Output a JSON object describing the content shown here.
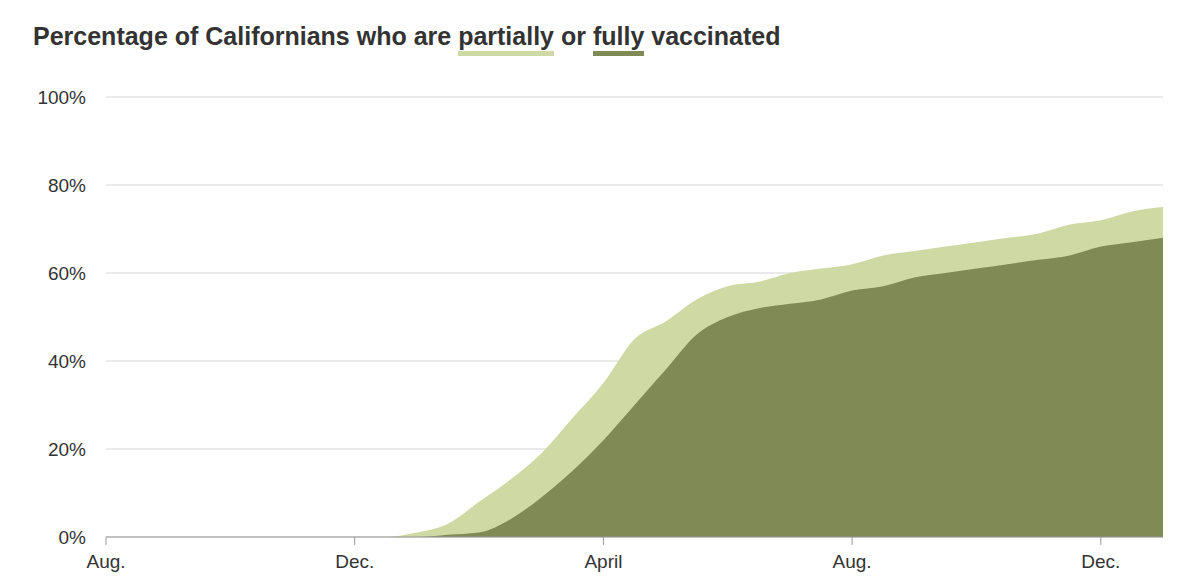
{
  "chart_data": {
    "type": "area",
    "title": "Percentage of Californians who are partially or fully vaccinated",
    "categories": [
      "Aug.",
      null,
      null,
      null,
      null,
      null,
      null,
      null,
      "Dec.",
      null,
      null,
      null,
      null,
      null,
      null,
      null,
      "April",
      null,
      null,
      null,
      null,
      null,
      null,
      null,
      "Aug.",
      null,
      null,
      null,
      null,
      null,
      null,
      null,
      "Dec.",
      null,
      null
    ],
    "series": [
      {
        "name": "partially",
        "color": "#cfd9a3",
        "values": [
          0,
          0,
          0,
          0,
          0,
          0,
          0,
          0,
          0,
          0,
          1,
          3,
          8,
          13,
          19,
          27,
          35,
          45,
          49,
          54,
          57,
          58,
          60,
          61,
          62,
          64,
          65,
          66,
          67,
          68,
          69,
          71,
          72,
          74,
          75
        ]
      },
      {
        "name": "fully",
        "color": "#7f8a55",
        "values": [
          0,
          0,
          0,
          0,
          0,
          0,
          0,
          0,
          0,
          0,
          0,
          0.5,
          1,
          4,
          9,
          15,
          22,
          30,
          38,
          46,
          50,
          52,
          53,
          54,
          56,
          57,
          59,
          60,
          61,
          62,
          63,
          64,
          66,
          67,
          68
        ]
      }
    ],
    "ylim": [
      0,
      100
    ],
    "yticks": [
      {
        "value": 0,
        "label": "0%"
      },
      {
        "value": 20,
        "label": "20%"
      },
      {
        "value": 40,
        "label": "40%"
      },
      {
        "value": 60,
        "label": "60%"
      },
      {
        "value": 80,
        "label": "80%"
      },
      {
        "value": 100,
        "label": "100%"
      }
    ],
    "grid": true,
    "stacked": false
  }
}
